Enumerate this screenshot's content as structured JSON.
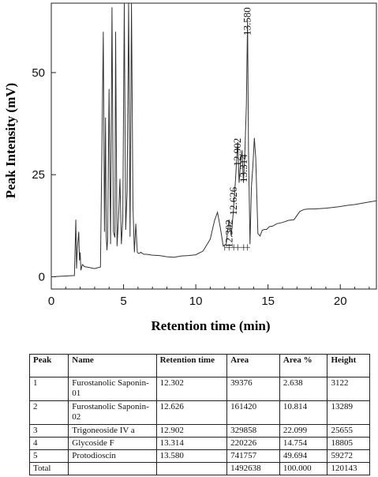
{
  "chart_data": {
    "type": "line",
    "xlabel": "Retention time (min)",
    "ylabel": "Peak Intensity (mV)",
    "xlim": [
      0,
      22.5
    ],
    "ylim": [
      -3,
      67
    ],
    "xticks": [
      0,
      5,
      10,
      15,
      20
    ],
    "yticks": [
      0,
      25,
      50
    ],
    "grid": false,
    "series": [
      {
        "x": [
          0,
          1.6,
          1.7,
          1.75,
          1.8,
          1.9,
          1.95,
          2.0,
          2.05,
          2.15,
          2.3,
          2.6,
          3.0,
          3.4,
          3.6,
          3.68,
          3.75,
          3.8,
          3.85,
          3.9,
          4.0,
          4.1,
          4.2,
          4.3,
          4.4,
          4.45,
          4.55,
          4.65,
          4.75,
          4.85,
          4.95,
          5.05,
          5.15,
          5.25,
          5.35,
          5.45,
          5.55,
          5.65,
          5.75,
          5.85,
          5.95,
          6.05,
          6.2,
          6.4,
          6.6,
          7.0,
          7.5,
          8.0,
          8.5,
          9.0,
          9.5,
          10.0,
          10.5,
          11.0,
          11.3,
          11.5,
          11.7,
          11.9,
          12.1,
          12.3,
          12.45,
          12.6,
          12.75,
          12.9,
          13.0,
          13.1,
          13.2,
          13.3,
          13.4,
          13.5,
          13.58,
          13.65,
          13.75,
          13.85,
          13.95,
          14.05,
          14.15,
          14.3,
          14.45,
          14.6,
          14.75,
          14.9,
          15.1,
          15.3,
          15.6,
          16.0,
          16.4,
          16.8,
          17.2,
          17.5,
          17.8,
          18.2,
          18.6,
          19.0,
          19.5,
          20.0,
          20.5,
          21.0,
          21.5,
          22.0,
          22.5
        ],
        "y": [
          0,
          0.3,
          14,
          2,
          7,
          11,
          4,
          6,
          1.6,
          3,
          2.5,
          2.3,
          2,
          2.4,
          60,
          11,
          39,
          10,
          6.5,
          9,
          46,
          8,
          66,
          11,
          9.6,
          60,
          7.5,
          14,
          24,
          8,
          14,
          70,
          11.5,
          21,
          70,
          9.8,
          70,
          17,
          6,
          13,
          6,
          5.7,
          6,
          5.5,
          5.5,
          5.3,
          5.2,
          4.9,
          4.8,
          5.1,
          5.2,
          5.4,
          6.3,
          9.2,
          13.8,
          15.8,
          12,
          7.5,
          8,
          14,
          10,
          16,
          24,
          33,
          23,
          28,
          31,
          23,
          31,
          42,
          63,
          31,
          8,
          22,
          27,
          34,
          29,
          10.6,
          10,
          11.4,
          11.6,
          11.6,
          12.3,
          12.4,
          13,
          13.3,
          13.8,
          14,
          16,
          16.5,
          16.6,
          16.6,
          16.7,
          16.8,
          17,
          17.2,
          17.5,
          17.7,
          18,
          18.3,
          18.6
        ]
      }
    ],
    "annotations": [
      {
        "label": "12.302",
        "x": 12.302
      },
      {
        "label": "12.626",
        "x": 12.626
      },
      {
        "label": "12.902",
        "x": 12.902
      },
      {
        "label": "13.314",
        "x": 13.314
      },
      {
        "label": "13.580",
        "x": 13.58
      }
    ]
  },
  "table": {
    "headers": [
      "Peak",
      "Name",
      "Retention time",
      "Area",
      "Area %",
      "Height"
    ],
    "rows": [
      [
        "1",
        "Furostanolic Saponin-01",
        "12.302",
        "39376",
        "2.638",
        "3122"
      ],
      [
        "2",
        "Furostanolic Saponin-02",
        "12.626",
        "161420",
        "10.814",
        "13289"
      ],
      [
        "3",
        "Trigoneoside IV a",
        "12.902",
        "329858",
        "22.099",
        "25655"
      ],
      [
        "4",
        "Glycoside F",
        "13.314",
        "220226",
        "14.754",
        "18805"
      ],
      [
        "5",
        "Protodioscin",
        "13.580",
        "741757",
        "49.694",
        "59272"
      ],
      [
        "Total",
        "",
        "",
        "1492638",
        "100.000",
        "120143"
      ]
    ]
  }
}
